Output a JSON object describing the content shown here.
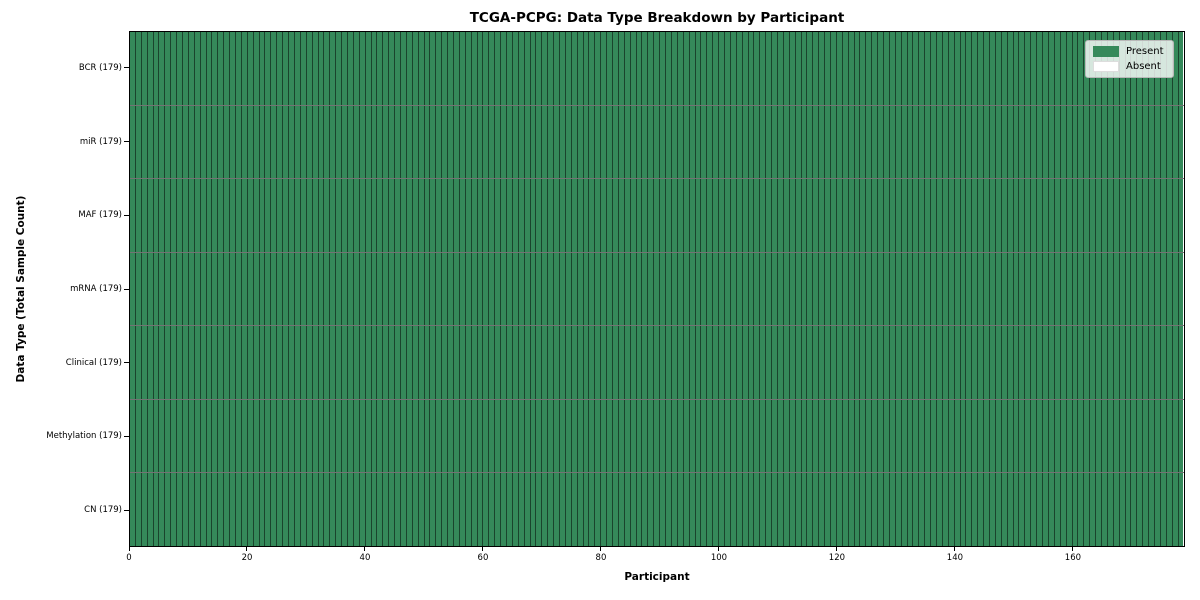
{
  "chart_data": {
    "type": "heatmap",
    "title": "TCGA-PCPG: Data Type Breakdown by Participant",
    "xlabel": "Participant",
    "ylabel": "Data Type (Total Sample Count)",
    "x_ticks": [
      0,
      20,
      40,
      60,
      80,
      100,
      120,
      140,
      160
    ],
    "x_range": [
      0,
      179
    ],
    "participant_count": 179,
    "categories": [
      "BCR (179)",
      "miR (179)",
      "MAF (179)",
      "mRNA (179)",
      "Clinical (179)",
      "Methylation (179)",
      "CN (179)"
    ],
    "rows": [
      {
        "label": "BCR (179)",
        "data_type": "BCR",
        "total_sample_count": 179,
        "present": 179,
        "absent": 0
      },
      {
        "label": "miR (179)",
        "data_type": "miR",
        "total_sample_count": 179,
        "present": 179,
        "absent": 0
      },
      {
        "label": "MAF (179)",
        "data_type": "MAF",
        "total_sample_count": 179,
        "present": 179,
        "absent": 0
      },
      {
        "label": "mRNA (179)",
        "data_type": "mRNA",
        "total_sample_count": 179,
        "present": 179,
        "absent": 0
      },
      {
        "label": "Clinical (179)",
        "data_type": "Clinical",
        "total_sample_count": 179,
        "present": 179,
        "absent": 0
      },
      {
        "label": "Methylation (179)",
        "data_type": "Methylation",
        "total_sample_count": 179,
        "present": 179,
        "absent": 0
      },
      {
        "label": "CN (179)",
        "data_type": "CN",
        "total_sample_count": 179,
        "present": 179,
        "absent": 0
      }
    ],
    "legend": {
      "position": "upper right",
      "entries": [
        {
          "label": "Present",
          "state": "present",
          "color": "#35895a"
        },
        {
          "label": "Absent",
          "state": "absent",
          "color": "#ffffff"
        }
      ]
    },
    "colors": {
      "present": "#35895a",
      "absent": "#ffffff",
      "cell_edge": "rgba(0,0,0,0.5)",
      "row_edge": "rgba(0,0,0,0.55)",
      "spine": "#000000"
    },
    "grid": "off"
  }
}
